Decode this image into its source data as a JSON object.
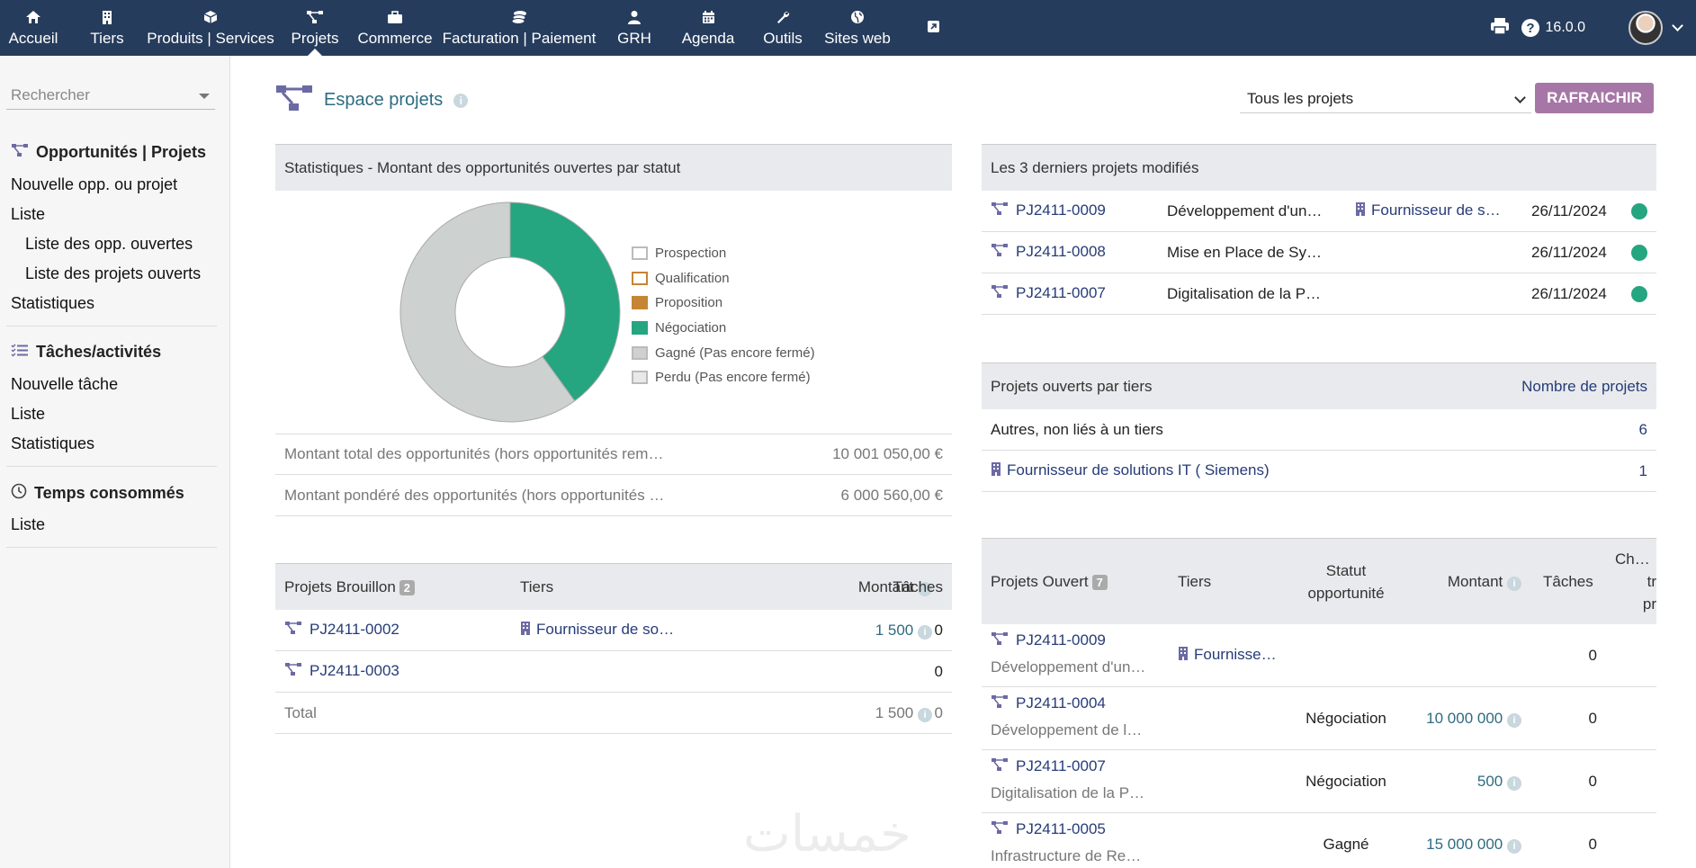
{
  "topnav": {
    "items": [
      {
        "label": "Accueil",
        "icon": "home-icon"
      },
      {
        "label": "Tiers",
        "icon": "building-icon"
      },
      {
        "label": "Produits | Services",
        "icon": "cube-icon"
      },
      {
        "label": "Projets",
        "icon": "project-icon"
      },
      {
        "label": "Commerce",
        "icon": "briefcase-icon"
      },
      {
        "label": "Facturation | Paiement",
        "icon": "coins-icon"
      },
      {
        "label": "GRH",
        "icon": "user-icon"
      },
      {
        "label": "Agenda",
        "icon": "calendar-icon"
      },
      {
        "label": "Outils",
        "icon": "wrench-icon"
      },
      {
        "label": "Sites web",
        "icon": "globe-icon"
      },
      {
        "label": "",
        "icon": "external-link-icon"
      }
    ],
    "version": "16.0.0"
  },
  "sidebar": {
    "search_placeholder": "Rechercher",
    "sections": [
      {
        "title": "Opportunités | Projets",
        "links": [
          "Nouvelle opp. ou projet",
          "Liste",
          "Liste des opp. ouvertes",
          "Liste des projets ouverts",
          "Statistiques"
        ]
      },
      {
        "title": "Tâches/activités",
        "links": [
          "Nouvelle tâche",
          "Liste",
          "Statistiques"
        ]
      },
      {
        "title": "Temps consommés",
        "links": [
          "Liste"
        ]
      }
    ]
  },
  "main": {
    "title": "Espace projets",
    "filter_selected": "Tous les projets",
    "refresh_label": "RAFRAICHIR"
  },
  "stats": {
    "title": "Statistiques - Montant des opportunités ouvertes par statut",
    "total_label": "Montant total des opportunités (hors opportunités rem…",
    "total_value": "10 001 050,00 €",
    "weighted_label": "Montant pondéré des opportunités (hors opportunités …",
    "weighted_value": "6 000 560,00 €"
  },
  "chart_data": {
    "type": "pie",
    "title": "",
    "categories": [
      "Prospection",
      "Qualification",
      "Proposition",
      "Négociation",
      "Gagné (Pas encore fermé)",
      "Perdu (Pas encore fermé)"
    ],
    "values": [
      0,
      0,
      0,
      4,
      6,
      0
    ],
    "colors": [
      "#ffffff",
      "#ffffff",
      "#c58534",
      "#25a580",
      "#cdd1d0",
      "#e8eaea"
    ],
    "legend_position": "right"
  },
  "draft": {
    "title": "Projets Brouillon",
    "count": "2",
    "headers": {
      "tiers": "Tiers",
      "amount": "Montant",
      "tasks": "Tâches"
    },
    "rows": [
      {
        "ref": "PJ2411-0002",
        "tiers": "Fournisseur de so…",
        "amount": "1 500",
        "tasks": "0"
      },
      {
        "ref": "PJ2411-0003",
        "tiers": "",
        "amount": "",
        "tasks": "0"
      }
    ],
    "total_label": "Total",
    "total_amount": "1 500",
    "total_tasks": "0"
  },
  "recent": {
    "title": "Les 3 derniers projets modifiés",
    "rows": [
      {
        "ref": "PJ2411-0009",
        "label": "Développement d'un…",
        "tiers": "Fournisseur de s…",
        "date": "26/11/2024"
      },
      {
        "ref": "PJ2411-0008",
        "label": "Mise en Place de Sy…",
        "tiers": "",
        "date": "26/11/2024"
      },
      {
        "ref": "PJ2411-0007",
        "label": "Digitalisation de la P…",
        "tiers": "",
        "date": "26/11/2024"
      }
    ]
  },
  "by_tiers": {
    "title": "Projets ouverts par tiers",
    "count_header": "Nombre de projets",
    "rows": [
      {
        "label": "Autres, non liés à un tiers",
        "count": "6"
      },
      {
        "label": "Fournisseur de solutions IT ( Siemens)",
        "count": "1"
      }
    ]
  },
  "open": {
    "title": "Projets Ouvert",
    "count": "7",
    "headers": {
      "tiers": "Tiers",
      "status_l1": "Statut",
      "status_l2": "opportunité",
      "amount": "Montant",
      "tasks": "Tâches",
      "charge_l1": "Charg",
      "charge_l2": "tr",
      "charge_l3": "pr"
    },
    "rows": [
      {
        "ref": "PJ2411-0009",
        "label": "Développement d'un…",
        "tiers": "Fournisse…",
        "status": "",
        "amount": "",
        "tasks": "0"
      },
      {
        "ref": "PJ2411-0004",
        "label": "Développement de l…",
        "tiers": "",
        "status": "Négociation",
        "amount": "10 000 000",
        "tasks": "0"
      },
      {
        "ref": "PJ2411-0007",
        "label": "Digitalisation de la P…",
        "tiers": "",
        "status": "Négociation",
        "amount": "500",
        "tasks": "0"
      },
      {
        "ref": "PJ2411-0005",
        "label": "Infrastructure de Re…",
        "tiers": "",
        "status": "Gagné",
        "amount": "15 000 000",
        "tasks": "0"
      }
    ]
  },
  "watermark": "خمسات"
}
